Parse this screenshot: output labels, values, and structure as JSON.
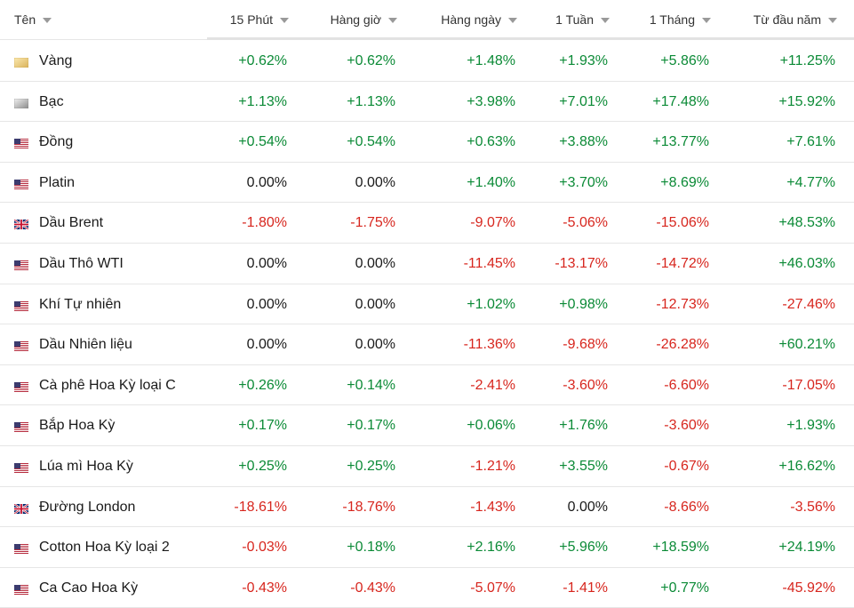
{
  "table": {
    "headers": [
      "Tên",
      "15 Phút",
      "Hàng giờ",
      "Hàng ngày",
      "1 Tuần",
      "1 Tháng",
      "Từ đầu năm"
    ],
    "rows": [
      [
        "Vàng",
        "+0.62%",
        "+0.62%",
        "+1.48%",
        "+1.93%",
        "+5.86%",
        "+11.25%"
      ],
      [
        "Bạc",
        "+1.13%",
        "+1.13%",
        "+3.98%",
        "+7.01%",
        "+17.48%",
        "+15.92%"
      ],
      [
        "Đồng",
        "+0.54%",
        "+0.54%",
        "+0.63%",
        "+3.88%",
        "+13.77%",
        "+7.61%"
      ],
      [
        "Platin",
        "0.00%",
        "0.00%",
        "+1.40%",
        "+3.70%",
        "+8.69%",
        "+4.77%"
      ],
      [
        "Dầu Brent",
        "-1.80%",
        "-1.75%",
        "-9.07%",
        "-5.06%",
        "-15.06%",
        "+48.53%"
      ],
      [
        "Dầu Thô WTI",
        "0.00%",
        "0.00%",
        "-11.45%",
        "-13.17%",
        "-14.72%",
        "+46.03%"
      ],
      [
        "Khí Tự nhiên",
        "0.00%",
        "0.00%",
        "+1.02%",
        "+0.98%",
        "-12.73%",
        "-27.46%"
      ],
      [
        "Dầu Nhiên liệu",
        "0.00%",
        "0.00%",
        "-11.36%",
        "-9.68%",
        "-26.28%",
        "+60.21%"
      ],
      [
        "Cà phê Hoa Kỳ loại C",
        "+0.26%",
        "+0.14%",
        "-2.41%",
        "-3.60%",
        "-6.60%",
        "-17.05%"
      ],
      [
        "Bắp Hoa Kỳ",
        "+0.17%",
        "+0.17%",
        "+0.06%",
        "+1.76%",
        "-3.60%",
        "+1.93%"
      ],
      [
        "Lúa mì Hoa Kỳ",
        "+0.25%",
        "+0.25%",
        "-1.21%",
        "+3.55%",
        "-0.67%",
        "+16.62%"
      ],
      [
        "Đường London",
        "-18.61%",
        "-18.76%",
        "-1.43%",
        "0.00%",
        "-8.66%",
        "-3.56%"
      ],
      [
        "Cotton Hoa Kỳ loại 2",
        "-0.03%",
        "+0.18%",
        "+2.16%",
        "+5.96%",
        "+18.59%",
        "+24.19%"
      ],
      [
        "Ca Cao Hoa Kỳ",
        "-0.43%",
        "-0.43%",
        "-5.07%",
        "-1.41%",
        "+0.77%",
        "-45.92%"
      ]
    ]
  }
}
